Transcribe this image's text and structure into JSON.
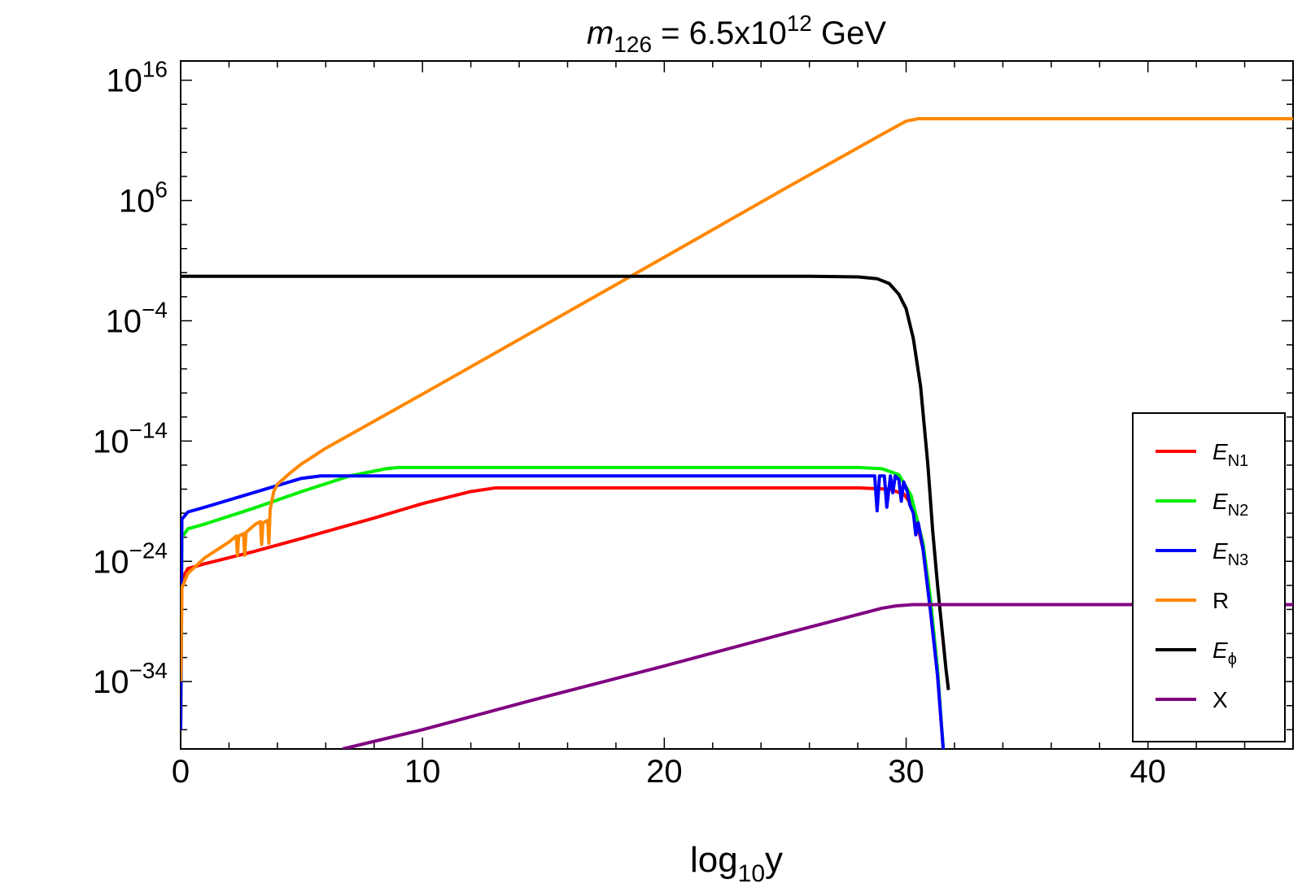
{
  "chart_data": {
    "type": "line",
    "title": {
      "var": "m",
      "sub": "126",
      "eq": " = 6.5x10",
      "sup": "12",
      "unit": " GeV"
    },
    "xlabel": {
      "base": "log",
      "sub": "10",
      "var": "y"
    },
    "ylabel": "",
    "xlim": [
      0,
      46
    ],
    "ylim_log10": [
      -39.6,
      17.6
    ],
    "yscale": "log",
    "grid": false,
    "legend_position": "right",
    "x_ticks": [
      {
        "v": 0,
        "label": "0"
      },
      {
        "v": 10,
        "label": "10"
      },
      {
        "v": 20,
        "label": "20"
      },
      {
        "v": 30,
        "label": "30"
      },
      {
        "v": 40,
        "label": "40"
      }
    ],
    "y_ticks": [
      {
        "e": 16,
        "base": "10",
        "exp": "16"
      },
      {
        "e": 6,
        "base": "10",
        "exp": "6"
      },
      {
        "e": -4,
        "base": "10",
        "exp": "−4"
      },
      {
        "e": -14,
        "base": "10",
        "exp": "−14"
      },
      {
        "e": -24,
        "base": "10",
        "exp": "−24"
      },
      {
        "e": -34,
        "base": "10",
        "exp": "−34"
      }
    ],
    "series": [
      {
        "name": "E_N1",
        "label": {
          "base": "E",
          "sub": "N1"
        },
        "color": "#ff0000",
        "points": [
          [
            0,
            -38
          ],
          [
            0.05,
            -25.5
          ],
          [
            0.3,
            -24.6
          ],
          [
            1,
            -24.2
          ],
          [
            3,
            -23.2
          ],
          [
            5,
            -22.1
          ],
          [
            8,
            -20.4
          ],
          [
            10,
            -19.2
          ],
          [
            12,
            -18.2
          ],
          [
            13,
            -17.9
          ],
          [
            20,
            -17.9
          ],
          [
            28,
            -17.9
          ],
          [
            29.3,
            -18.0
          ],
          [
            29.9,
            -18.4
          ],
          [
            30.3,
            -19.5
          ],
          [
            30.7,
            -23.0
          ],
          [
            31.0,
            -28.0
          ],
          [
            31.3,
            -33.5
          ],
          [
            31.55,
            -40
          ]
        ]
      },
      {
        "name": "E_N2",
        "label": {
          "base": "E",
          "sub": "N2"
        },
        "color": "#00ee00",
        "points": [
          [
            0,
            -38
          ],
          [
            0.05,
            -22.0
          ],
          [
            0.3,
            -21.3
          ],
          [
            1,
            -20.9
          ],
          [
            3,
            -19.6
          ],
          [
            5,
            -18.2
          ],
          [
            7,
            -16.9
          ],
          [
            8.5,
            -16.3
          ],
          [
            9,
            -16.2
          ],
          [
            20,
            -16.2
          ],
          [
            28,
            -16.2
          ],
          [
            29,
            -16.3
          ],
          [
            29.7,
            -16.8
          ],
          [
            30.2,
            -18.5
          ],
          [
            30.7,
            -22.5
          ],
          [
            31.0,
            -27.0
          ],
          [
            31.3,
            -33.0
          ],
          [
            31.55,
            -40
          ]
        ]
      },
      {
        "name": "E_N3",
        "label": {
          "base": "E",
          "sub": "N3"
        },
        "color": "#0000ff",
        "points": [
          [
            0,
            -38
          ],
          [
            0.05,
            -20.5
          ],
          [
            0.3,
            -19.9
          ],
          [
            1,
            -19.5
          ],
          [
            3,
            -18.3
          ],
          [
            5,
            -17.1
          ],
          [
            5.8,
            -16.9
          ],
          [
            20,
            -16.9
          ],
          [
            28.5,
            -16.9
          ],
          [
            28.7,
            -16.9
          ],
          [
            28.8,
            -19.8
          ],
          [
            28.9,
            -16.9
          ],
          [
            29.1,
            -16.9
          ],
          [
            29.2,
            -19.5
          ],
          [
            29.35,
            -16.9
          ],
          [
            29.45,
            -18.3
          ],
          [
            29.55,
            -16.9
          ],
          [
            29.7,
            -17.2
          ],
          [
            29.8,
            -19.0
          ],
          [
            29.9,
            -17.4
          ],
          [
            30.05,
            -18.2
          ],
          [
            30.15,
            -19.3
          ],
          [
            30.3,
            -20.0
          ],
          [
            30.4,
            -21.8
          ],
          [
            30.5,
            -20.8
          ],
          [
            30.7,
            -23.0
          ],
          [
            31.0,
            -28.0
          ],
          [
            31.3,
            -33.5
          ],
          [
            31.55,
            -40
          ]
        ]
      },
      {
        "name": "R",
        "label": {
          "base": "R",
          "sub": ""
        },
        "color": "#ff8800",
        "points": [
          [
            0,
            -34.0
          ],
          [
            0.05,
            -26.2
          ],
          [
            0.3,
            -25.0
          ],
          [
            1,
            -23.7
          ],
          [
            2,
            -22.4
          ],
          [
            2.3,
            -21.9
          ],
          [
            2.35,
            -23.5
          ],
          [
            2.4,
            -21.9
          ],
          [
            2.6,
            -21.7
          ],
          [
            2.65,
            -23.5
          ],
          [
            2.7,
            -21.6
          ],
          [
            3.1,
            -20.9
          ],
          [
            3.3,
            -20.7
          ],
          [
            3.35,
            -22.6
          ],
          [
            3.4,
            -20.8
          ],
          [
            3.6,
            -20.6
          ],
          [
            3.65,
            -22.5
          ],
          [
            3.7,
            -19.7
          ],
          [
            3.85,
            -18.2
          ],
          [
            4.0,
            -17.6
          ],
          [
            4.5,
            -16.7
          ],
          [
            5,
            -15.9
          ],
          [
            6,
            -14.6
          ],
          [
            10,
            -10.1
          ],
          [
            18,
            -1.0
          ],
          [
            25,
            7.0
          ],
          [
            29,
            11.5
          ],
          [
            30,
            12.6
          ],
          [
            30.5,
            12.8
          ],
          [
            46,
            12.8
          ]
        ]
      },
      {
        "name": "E_phi",
        "label": {
          "base": "E",
          "sub": "ϕ"
        },
        "color": "#000000",
        "points": [
          [
            0,
            -0.3
          ],
          [
            20,
            -0.3
          ],
          [
            26,
            -0.3
          ],
          [
            28,
            -0.35
          ],
          [
            28.8,
            -0.5
          ],
          [
            29.3,
            -0.9
          ],
          [
            29.7,
            -1.8
          ],
          [
            30.0,
            -3.0
          ],
          [
            30.3,
            -5.5
          ],
          [
            30.6,
            -9.5
          ],
          [
            30.9,
            -16.0
          ],
          [
            31.1,
            -21.5
          ],
          [
            31.3,
            -26.0
          ],
          [
            31.5,
            -30.0
          ],
          [
            31.65,
            -33.0
          ],
          [
            31.75,
            -34.7
          ]
        ]
      },
      {
        "name": "X",
        "label": {
          "base": "X",
          "sub": ""
        },
        "color": "#800080",
        "points": [
          [
            6.7,
            -39.6
          ],
          [
            10,
            -38.0
          ],
          [
            15,
            -35.3
          ],
          [
            20,
            -32.7
          ],
          [
            25,
            -30.0
          ],
          [
            29,
            -27.9
          ],
          [
            29.6,
            -27.7
          ],
          [
            30.3,
            -27.6
          ],
          [
            46,
            -27.6
          ]
        ]
      }
    ]
  }
}
